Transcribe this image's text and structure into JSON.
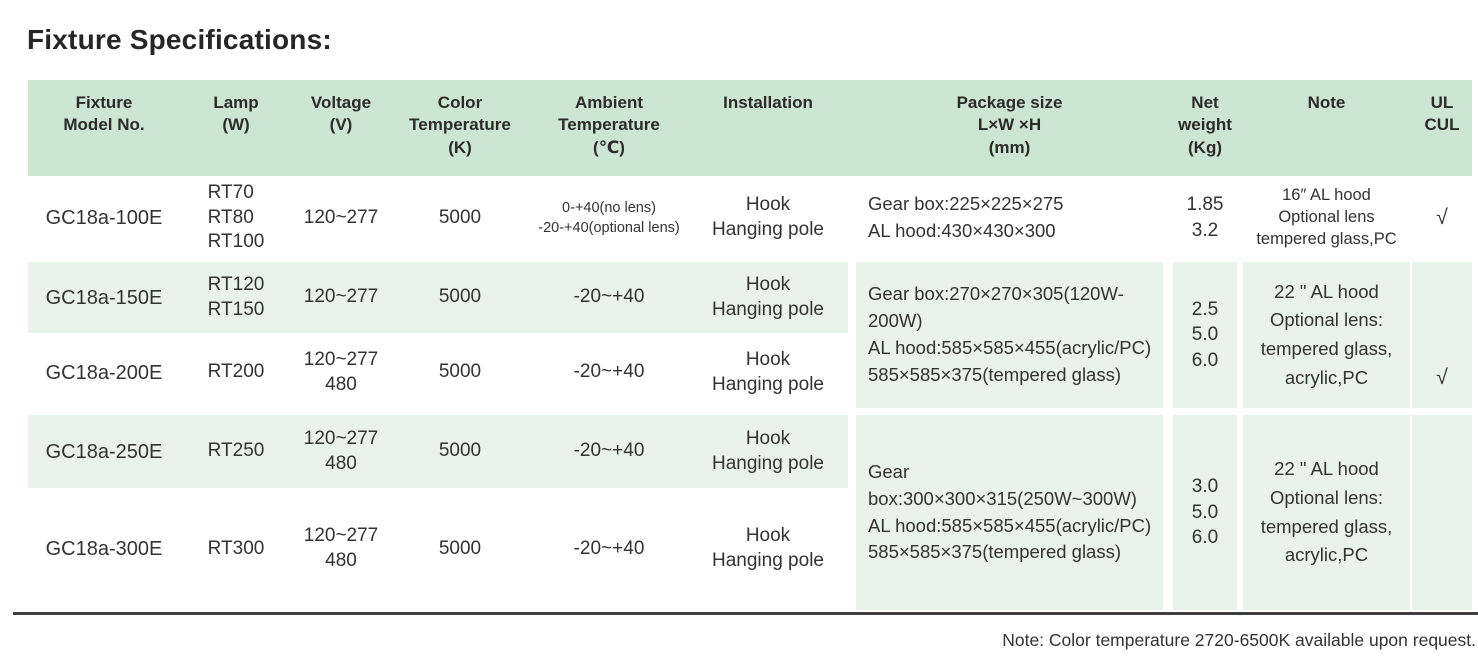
{
  "title": "Fixture Specifications:",
  "footnote": "Note: Color temperature 2720-6500K available upon request.",
  "colors": {
    "header_bg": "#cde5d3",
    "row_alt_bg": "#e9f3ec",
    "rule": "#3f3f3f",
    "text": "#333333"
  },
  "table": {
    "headers": {
      "model": "Fixture\nModel No.",
      "lamp": "Lamp\n(W)",
      "voltage": "Voltage\n(V)",
      "color_temp": "Color\nTemperature\n(K)",
      "ambient": "Ambient\nTemperature\n(℃)",
      "installation": "Installation",
      "package": "Package size\nL×W ×H\n(mm)",
      "weight": "Net\nweight\n(Kg)",
      "note": "Note",
      "ul": "UL\nCUL"
    },
    "rows": [
      {
        "model": "GC18a-100E",
        "lamp": "RT70\nRT80\nRT100",
        "voltage": "120~277",
        "color_temp": "5000",
        "ambient": "0-+40(no lens)\n-20-+40(optional lens)",
        "installation": "Hook\nHanging pole"
      },
      {
        "model": "GC18a-150E",
        "lamp": "RT120\nRT150",
        "voltage": "120~277",
        "color_temp": "5000",
        "ambient": "-20~+40",
        "installation": "Hook\nHanging pole"
      },
      {
        "model": "GC18a-200E",
        "lamp": "RT200",
        "voltage": "120~277\n480",
        "color_temp": "5000",
        "ambient": "-20~+40",
        "installation": "Hook\nHanging pole"
      },
      {
        "model": "GC18a-250E",
        "lamp": "RT250",
        "voltage": "120~277\n480",
        "color_temp": "5000",
        "ambient": "-20~+40",
        "installation": "Hook\nHanging pole"
      },
      {
        "model": "GC18a-300E",
        "lamp": "RT300",
        "voltage": "120~277\n480",
        "color_temp": "5000",
        "ambient": "-20~+40",
        "installation": "Hook\nHanging pole"
      }
    ],
    "groups": [
      {
        "package": "Gear box:225×225×275\nAL hood:430×430×300",
        "weight": "1.85\n3.2",
        "note": "16″ AL hood\nOptional lens\ntempered glass,PC",
        "ul": "√"
      },
      {
        "package": "Gear box:270×270×305(120W-200W)\nAL hood:585×585×455(acrylic/PC)\n585×585×375(tempered glass)",
        "weight": "2.5\n5.0\n6.0",
        "note": "22 \" AL hood\nOptional lens:\ntempered glass,\nacrylic,PC",
        "ul": "√"
      },
      {
        "package": "Gear box:300×300×315(250W~300W)\nAL hood:585×585×455(acrylic/PC)\n585×585×375(tempered glass)",
        "weight": "3.0\n5.0\n6.0",
        "note": "22 \" AL hood\nOptional lens:\ntempered glass,\nacrylic,PC",
        "ul": ""
      }
    ]
  }
}
